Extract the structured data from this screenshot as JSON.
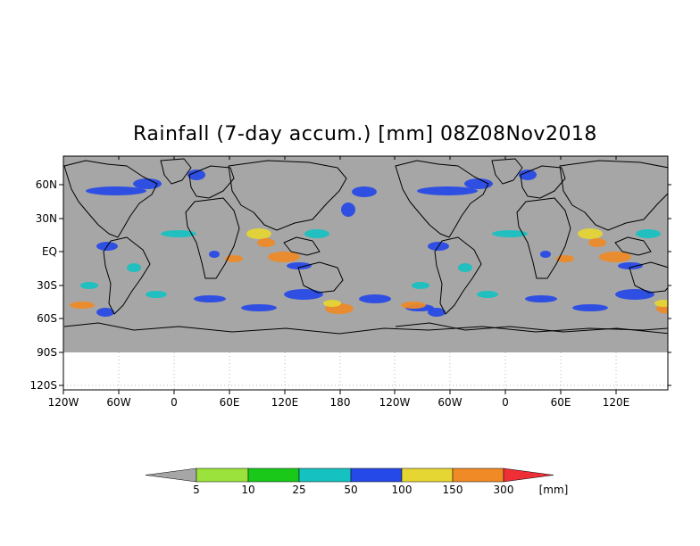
{
  "title": "Rainfall (7-day accum.) [mm] 08Z08Nov2018",
  "chart_data": {
    "type": "heatmap",
    "title": "Rainfall (7-day accum.) [mm] 08Z08Nov2018",
    "x_ticks": [
      "120W",
      "60W",
      "0",
      "60E",
      "120E",
      "180",
      "120W",
      "60W",
      "0",
      "60E",
      "120E"
    ],
    "y_ticks": [
      "60N",
      "30N",
      "EQ",
      "30S",
      "60S",
      "90S",
      "120S"
    ],
    "colorbar": {
      "unit": "[mm]",
      "levels": [
        "5",
        "10",
        "25",
        "50",
        "100",
        "150",
        "300"
      ],
      "colors": [
        "#a6a6a6",
        "#9be23c",
        "#19c818",
        "#16c1c1",
        "#2548e8",
        "#e6d633",
        "#ef8a26",
        "#ee2f36"
      ]
    },
    "grid": true
  },
  "colors": {
    "no_rain": "#a6a6a6",
    "coastline": "#000000",
    "background": "#ffffff"
  }
}
